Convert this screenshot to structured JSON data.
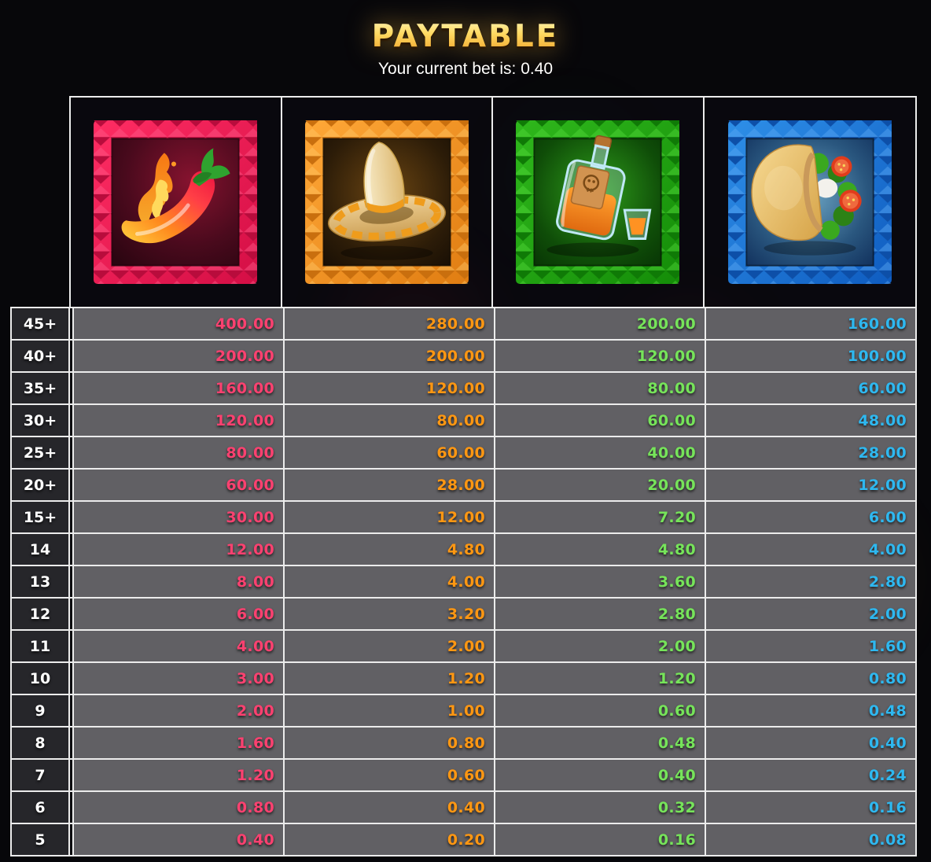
{
  "header": {
    "title": "PAYTABLE",
    "bet_text": "Your current bet is: 0.40"
  },
  "columns": [
    {
      "id": "chili-pepper",
      "icon": "chili-pepper-icon",
      "value_color": "#fb4170",
      "frame_color": "#e3104c"
    },
    {
      "id": "sombrero",
      "icon": "sombrero-icon",
      "value_color": "#ff9712",
      "frame_color": "#f28b1e"
    },
    {
      "id": "tequila-bottle",
      "icon": "tequila-bottle-icon",
      "value_color": "#76e45a",
      "frame_color": "#1faa0e"
    },
    {
      "id": "taco",
      "icon": "taco-icon",
      "value_color": "#2eb8f0",
      "frame_color": "#1a7de0"
    }
  ],
  "paytable": {
    "rows": [
      {
        "count": "45+",
        "values": [
          "400.00",
          "280.00",
          "200.00",
          "160.00"
        ]
      },
      {
        "count": "40+",
        "values": [
          "200.00",
          "200.00",
          "120.00",
          "100.00"
        ]
      },
      {
        "count": "35+",
        "values": [
          "160.00",
          "120.00",
          "80.00",
          "60.00"
        ]
      },
      {
        "count": "30+",
        "values": [
          "120.00",
          "80.00",
          "60.00",
          "48.00"
        ]
      },
      {
        "count": "25+",
        "values": [
          "80.00",
          "60.00",
          "40.00",
          "28.00"
        ]
      },
      {
        "count": "20+",
        "values": [
          "60.00",
          "28.00",
          "20.00",
          "12.00"
        ]
      },
      {
        "count": "15+",
        "values": [
          "30.00",
          "12.00",
          "7.20",
          "6.00"
        ]
      },
      {
        "count": "14",
        "values": [
          "12.00",
          "4.80",
          "4.80",
          "4.00"
        ]
      },
      {
        "count": "13",
        "values": [
          "8.00",
          "4.00",
          "3.60",
          "2.80"
        ]
      },
      {
        "count": "12",
        "values": [
          "6.00",
          "3.20",
          "2.80",
          "2.00"
        ]
      },
      {
        "count": "11",
        "values": [
          "4.00",
          "2.00",
          "2.00",
          "1.60"
        ]
      },
      {
        "count": "10",
        "values": [
          "3.00",
          "1.20",
          "1.20",
          "0.80"
        ]
      },
      {
        "count": "9",
        "values": [
          "2.00",
          "1.00",
          "0.60",
          "0.48"
        ]
      },
      {
        "count": "8",
        "values": [
          "1.60",
          "0.80",
          "0.48",
          "0.40"
        ]
      },
      {
        "count": "7",
        "values": [
          "1.20",
          "0.60",
          "0.40",
          "0.24"
        ]
      },
      {
        "count": "6",
        "values": [
          "0.80",
          "0.40",
          "0.32",
          "0.16"
        ]
      },
      {
        "count": "5",
        "values": [
          "0.40",
          "0.20",
          "0.16",
          "0.08"
        ]
      }
    ]
  }
}
